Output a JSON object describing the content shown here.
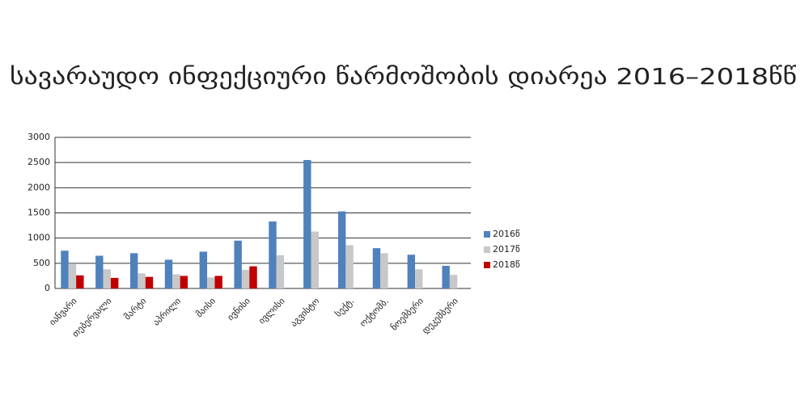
{
  "chart_data": {
    "type": "bar",
    "title": "სავარაუდო ინფექციური წარმოშობის დიარეა 2016–2018წწ",
    "categories": [
      "იანვარი",
      "თებერვალი",
      "მარტი",
      "აპრილი",
      "მაისი",
      "ივნისი",
      "ივლისი",
      "აგვისტო",
      "სექტ.",
      "ოქტომბ.",
      "ნოემბერი",
      "დეკემბერი"
    ],
    "series": [
      {
        "name": "2016წ",
        "color": "#4f81bd",
        "values": [
          750,
          650,
          700,
          570,
          730,
          950,
          1330,
          2550,
          1530,
          800,
          670,
          450
        ]
      },
      {
        "name": "2017წ",
        "color": "#c8c8c8",
        "values": [
          480,
          380,
          300,
          280,
          220,
          370,
          660,
          1130,
          860,
          700,
          380,
          270
        ]
      },
      {
        "name": "2018წ",
        "color": "#c00000",
        "values": [
          260,
          210,
          230,
          250,
          250,
          440,
          null,
          null,
          null,
          null,
          null,
          null
        ]
      }
    ],
    "ylim": [
      0,
      3000
    ],
    "yticks": [
      0,
      500,
      1000,
      1500,
      2000,
      2500,
      3000
    ],
    "grid": true,
    "legend": "right"
  }
}
